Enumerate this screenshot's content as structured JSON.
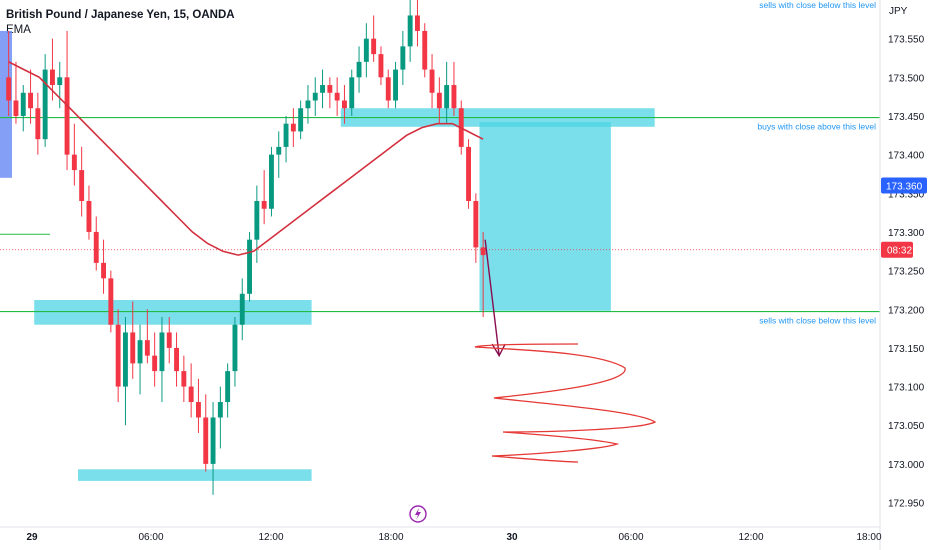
{
  "header": {
    "title": "British Pound / Japanese Yen, 15, OANDA",
    "indicator": "EMA"
  },
  "chart_data": {
    "type": "candlestick",
    "currency": "JPY",
    "ylim": [
      172.93,
      173.6
    ],
    "y_ticks": [
      "173.550",
      "173.500",
      "173.450",
      "173.400",
      "173.350",
      "173.300",
      "173.250",
      "173.200",
      "173.150",
      "173.100",
      "173.050",
      "173.000",
      "172.950"
    ],
    "x_ticks": [
      "29",
      "06:00",
      "12:00",
      "18:00",
      "30",
      "06:00",
      "12:00",
      "18:00"
    ],
    "price_badge": {
      "value": "173.360",
      "color": "#2962ff"
    },
    "countdown_badge": {
      "value": "08:32",
      "color": "#f23645"
    },
    "colors": {
      "up": "#089981",
      "down": "#f23645",
      "ema": "#d32f3f",
      "zone": "#4dd4e4",
      "level": "#22bb44",
      "annotation": "#2196f3"
    },
    "levels": [
      {
        "price": 173.448,
        "label": "buys with close above this level"
      },
      {
        "price": 173.197,
        "label": "sells with close below this level"
      }
    ],
    "top_label": "sells with close below this level",
    "candles_ohlc": [
      [
        173.5,
        173.56,
        173.45,
        173.47
      ],
      [
        173.47,
        173.52,
        173.44,
        173.45
      ],
      [
        173.45,
        173.49,
        173.43,
        173.48
      ],
      [
        173.48,
        173.51,
        173.44,
        173.46
      ],
      [
        173.46,
        173.48,
        173.4,
        173.42
      ],
      [
        173.42,
        173.53,
        173.41,
        173.51
      ],
      [
        173.51,
        173.55,
        173.47,
        173.49
      ],
      [
        173.49,
        173.52,
        173.46,
        173.5
      ],
      [
        173.5,
        173.56,
        173.38,
        173.4
      ],
      [
        173.4,
        173.44,
        173.36,
        173.38
      ],
      [
        173.38,
        173.41,
        173.32,
        173.34
      ],
      [
        173.34,
        173.36,
        173.29,
        173.3
      ],
      [
        173.3,
        173.32,
        173.25,
        173.26
      ],
      [
        173.26,
        173.29,
        173.22,
        173.24
      ],
      [
        173.24,
        173.25,
        173.17,
        173.18
      ],
      [
        173.18,
        173.2,
        173.08,
        173.1
      ],
      [
        173.1,
        173.19,
        173.05,
        173.17
      ],
      [
        173.17,
        173.21,
        173.11,
        173.13
      ],
      [
        173.13,
        173.18,
        173.09,
        173.16
      ],
      [
        173.16,
        173.2,
        173.13,
        173.14
      ],
      [
        173.14,
        173.17,
        173.1,
        173.12
      ],
      [
        173.12,
        173.19,
        173.08,
        173.17
      ],
      [
        173.17,
        173.19,
        173.13,
        173.15
      ],
      [
        173.15,
        173.17,
        173.1,
        173.12
      ],
      [
        173.12,
        173.14,
        173.08,
        173.1
      ],
      [
        173.1,
        173.13,
        173.06,
        173.08
      ],
      [
        173.08,
        173.11,
        173.04,
        173.06
      ],
      [
        173.06,
        173.09,
        172.99,
        173.0
      ],
      [
        173.0,
        173.08,
        172.96,
        173.06
      ],
      [
        173.06,
        173.1,
        173.02,
        173.08
      ],
      [
        173.08,
        173.13,
        173.06,
        173.12
      ],
      [
        173.12,
        173.19,
        173.1,
        173.18
      ],
      [
        173.18,
        173.24,
        173.16,
        173.22
      ],
      [
        173.22,
        173.3,
        173.21,
        173.29
      ],
      [
        173.29,
        173.36,
        173.26,
        173.34
      ],
      [
        173.34,
        173.38,
        173.31,
        173.33
      ],
      [
        173.33,
        173.41,
        173.32,
        173.4
      ],
      [
        173.4,
        173.43,
        173.37,
        173.41
      ],
      [
        173.41,
        173.45,
        173.39,
        173.44
      ],
      [
        173.44,
        173.46,
        173.41,
        173.43
      ],
      [
        173.43,
        173.47,
        173.42,
        173.46
      ],
      [
        173.46,
        173.49,
        173.44,
        173.47
      ],
      [
        173.47,
        173.5,
        173.45,
        173.48
      ],
      [
        173.48,
        173.51,
        173.46,
        173.49
      ],
      [
        173.49,
        173.5,
        173.46,
        173.48
      ],
      [
        173.48,
        173.5,
        173.45,
        173.47
      ],
      [
        173.47,
        173.49,
        173.44,
        173.46
      ],
      [
        173.46,
        173.51,
        173.45,
        173.5
      ],
      [
        173.5,
        173.54,
        173.48,
        173.52
      ],
      [
        173.52,
        173.57,
        173.5,
        173.55
      ],
      [
        173.55,
        173.58,
        173.52,
        173.53
      ],
      [
        173.53,
        173.54,
        173.49,
        173.5
      ],
      [
        173.5,
        173.51,
        173.46,
        173.47
      ],
      [
        173.47,
        173.52,
        173.46,
        173.51
      ],
      [
        173.51,
        173.56,
        173.49,
        173.54
      ],
      [
        173.54,
        173.6,
        173.52,
        173.58
      ],
      [
        173.58,
        173.6,
        173.54,
        173.56
      ],
      [
        173.56,
        173.57,
        173.5,
        173.51
      ],
      [
        173.51,
        173.53,
        173.46,
        173.48
      ],
      [
        173.48,
        173.5,
        173.44,
        173.46
      ],
      [
        173.46,
        173.52,
        173.44,
        173.49
      ],
      [
        173.49,
        173.52,
        173.45,
        173.46
      ],
      [
        173.46,
        173.47,
        173.4,
        173.41
      ],
      [
        173.41,
        173.42,
        173.33,
        173.34
      ],
      [
        173.34,
        173.35,
        173.26,
        173.28
      ],
      [
        173.28,
        173.3,
        173.19,
        173.27
      ]
    ],
    "ema": [
      173.52,
      173.51,
      173.5,
      173.48,
      173.46,
      173.44,
      173.42,
      173.4,
      173.38,
      173.36,
      173.34,
      173.32,
      173.3,
      173.285,
      173.275,
      173.27,
      173.275,
      173.29,
      173.305,
      173.32,
      173.335,
      173.35,
      173.365,
      173.38,
      173.395,
      173.41,
      173.425,
      173.435,
      173.44,
      173.44,
      173.43,
      173.42
    ],
    "zones": [
      {
        "from": 173.212,
        "to": 173.18,
        "x_from_bar": 4,
        "x_to_bar": 41
      },
      {
        "from": 173.46,
        "to": 173.436,
        "x_from_bar": 46,
        "x_to_bar": 88
      },
      {
        "from": 173.442,
        "to": 173.198,
        "x_from_bar": 65,
        "x_to_bar": 82
      },
      {
        "from": 172.993,
        "to": 172.978,
        "x_from_bar": 10,
        "x_to_bar": 41
      }
    ]
  }
}
